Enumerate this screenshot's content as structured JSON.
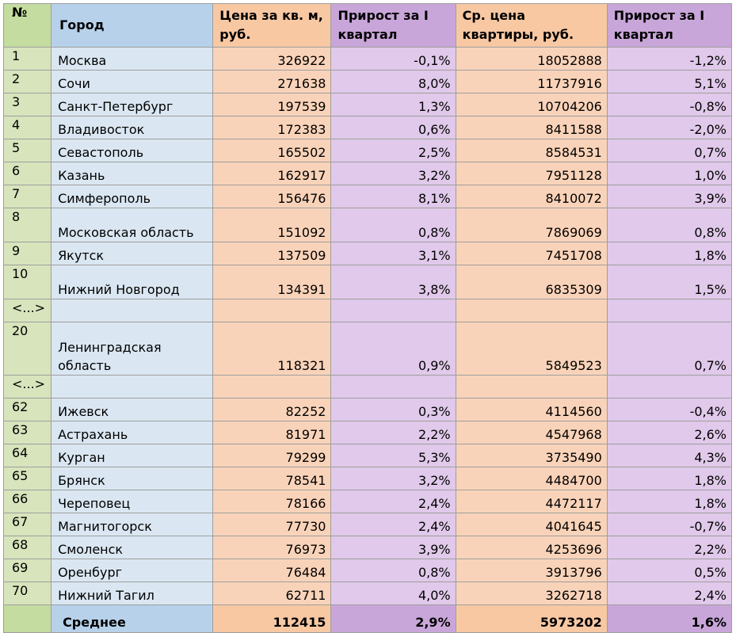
{
  "headers": {
    "num": "№",
    "city": "Город",
    "price_sqm": "Цена за кв. м, руб.",
    "growth_sqm": "Прирост за I квартал",
    "avg_price": "Ср. цена квартиры, руб.",
    "growth_avg": "Прирост за I квартал"
  },
  "rows": [
    {
      "num": "1",
      "city": "Москва",
      "price_sqm": "326922",
      "growth_sqm": "-0,1%",
      "avg_price": "18052888",
      "growth_avg": "-1,2%"
    },
    {
      "num": "2",
      "city": "Сочи",
      "price_sqm": "271638",
      "growth_sqm": "8,0%",
      "avg_price": "11737916",
      "growth_avg": "5,1%"
    },
    {
      "num": "3",
      "city": "Санкт-Петербург",
      "price_sqm": "197539",
      "growth_sqm": "1,3%",
      "avg_price": "10704206",
      "growth_avg": "-0,8%"
    },
    {
      "num": "4",
      "city": "Владивосток",
      "price_sqm": "172383",
      "growth_sqm": "0,6%",
      "avg_price": "8411588",
      "growth_avg": "-2,0%"
    },
    {
      "num": "5",
      "city": "Севастополь",
      "price_sqm": "165502",
      "growth_sqm": "2,5%",
      "avg_price": "8584531",
      "growth_avg": "0,7%"
    },
    {
      "num": "6",
      "city": "Казань",
      "price_sqm": "162917",
      "growth_sqm": "3,2%",
      "avg_price": "7951128",
      "growth_avg": "1,0%"
    },
    {
      "num": "7",
      "city": "Симферополь",
      "price_sqm": "156476",
      "growth_sqm": "8,1%",
      "avg_price": "8410072",
      "growth_avg": "3,9%"
    },
    {
      "num": "8",
      "city": "Московская область",
      "price_sqm": "151092",
      "growth_sqm": "0,8%",
      "avg_price": "7869069",
      "growth_avg": "0,8%"
    },
    {
      "num": "9",
      "city": "Якутск",
      "price_sqm": "137509",
      "growth_sqm": "3,1%",
      "avg_price": "7451708",
      "growth_avg": "1,8%"
    },
    {
      "num": "10",
      "city": "Нижний Новгород",
      "price_sqm": "134391",
      "growth_sqm": "3,8%",
      "avg_price": "6835309",
      "growth_avg": "1,5%"
    },
    {
      "num": "<...>",
      "city": "",
      "price_sqm": "",
      "growth_sqm": "",
      "avg_price": "",
      "growth_avg": ""
    },
    {
      "num": "20",
      "city": "Ленинградская область",
      "price_sqm": "118321",
      "growth_sqm": "0,9%",
      "avg_price": "5849523",
      "growth_avg": "0,7%"
    },
    {
      "num": "<...>",
      "city": "",
      "price_sqm": "",
      "growth_sqm": "",
      "avg_price": "",
      "growth_avg": ""
    },
    {
      "num": "62",
      "city": "Ижевск",
      "price_sqm": "82252",
      "growth_sqm": "0,3%",
      "avg_price": "4114560",
      "growth_avg": "-0,4%"
    },
    {
      "num": "63",
      "city": "Астрахань",
      "price_sqm": "81971",
      "growth_sqm": "2,2%",
      "avg_price": "4547968",
      "growth_avg": "2,6%"
    },
    {
      "num": "64",
      "city": "Курган",
      "price_sqm": "79299",
      "growth_sqm": "5,3%",
      "avg_price": "3735490",
      "growth_avg": "4,3%"
    },
    {
      "num": "65",
      "city": "Брянск",
      "price_sqm": "78541",
      "growth_sqm": "3,2%",
      "avg_price": "4484700",
      "growth_avg": "1,8%"
    },
    {
      "num": "66",
      "city": "Череповец",
      "price_sqm": "78166",
      "growth_sqm": "2,4%",
      "avg_price": "4472117",
      "growth_avg": "1,8%"
    },
    {
      "num": "67",
      "city": "Магнитогорск",
      "price_sqm": "77730",
      "growth_sqm": "2,4%",
      "avg_price": "4041645",
      "growth_avg": "-0,7%"
    },
    {
      "num": "68",
      "city": "Смоленск",
      "price_sqm": "76973",
      "growth_sqm": "3,9%",
      "avg_price": "4253696",
      "growth_avg": "2,2%"
    },
    {
      "num": "69",
      "city": "Оренбург",
      "price_sqm": "76484",
      "growth_sqm": "0,8%",
      "avg_price": "3913796",
      "growth_avg": "0,5%"
    },
    {
      "num": "70",
      "city": "Нижний Тагил",
      "price_sqm": "62711",
      "growth_sqm": "4,0%",
      "avg_price": "3262718",
      "growth_avg": "2,4%"
    }
  ],
  "footer": {
    "label": "Среднее",
    "price_sqm": "112415",
    "growth_sqm": "2,9%",
    "avg_price": "5973202",
    "growth_avg": "1,6%"
  },
  "colors": {
    "num_col": "#d8e4bc",
    "city_col": "#dae7f2",
    "price_col": "#f9d3b9",
    "growth_col": "#e0c9ea"
  }
}
